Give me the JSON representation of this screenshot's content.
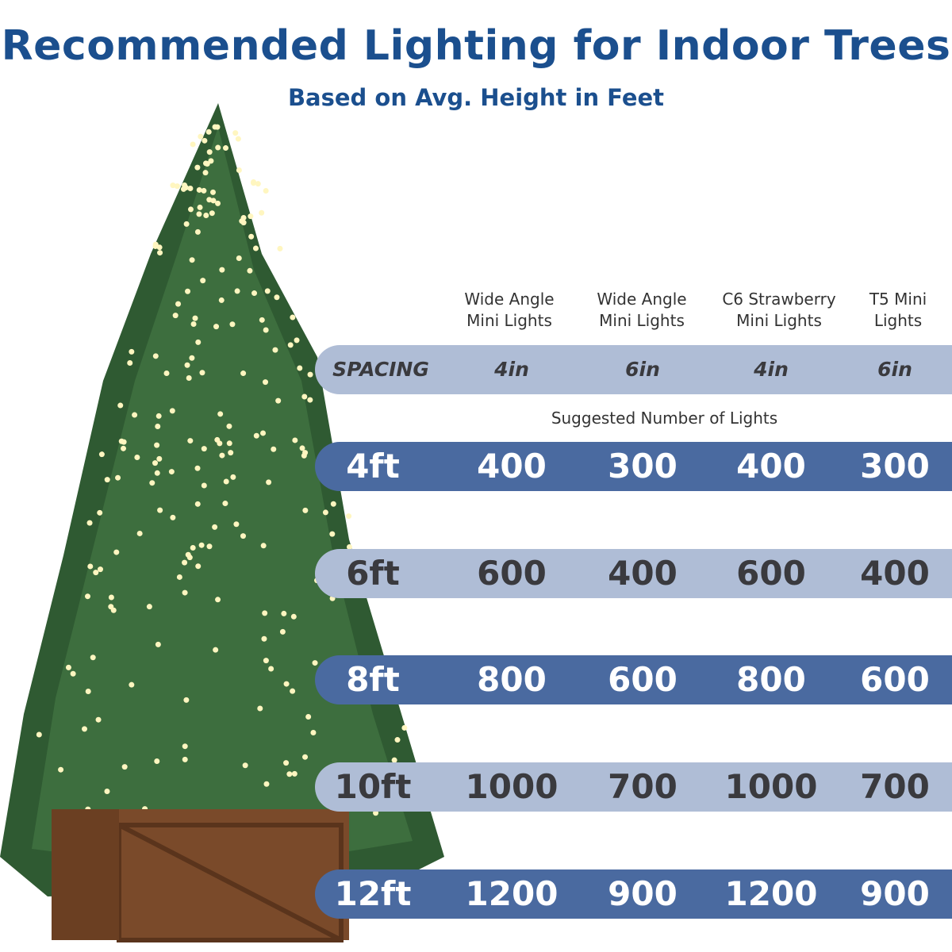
{
  "title": "Recommended Lighting for Indoor Trees",
  "subtitle": "Based on Avg. Height in Feet",
  "colors": {
    "title": "#1b4f8e",
    "bar_light": "#afbdd6",
    "bar_dark": "#4a6aa0",
    "bulb_base": "#1f5e5e"
  },
  "products": [
    {
      "line1": "Wide Angle",
      "line2": "Mini Lights",
      "icon": "wide-angle-bulb"
    },
    {
      "line1": "Wide Angle",
      "line2": "Mini Lights",
      "icon": "wide-angle-bulb"
    },
    {
      "line1": "C6 Strawberry",
      "line2": "Mini Lights",
      "icon": "c6-strawberry-bulb"
    },
    {
      "line1": "T5 Mini",
      "line2": "Lights",
      "icon": "t5-mini-bulb"
    }
  ],
  "spacing": {
    "label": "SPACING",
    "values": [
      "4in",
      "6in",
      "4in",
      "6in"
    ]
  },
  "suggested_label": "Suggested Number of Lights",
  "rows": [
    {
      "height": "4ft",
      "values": [
        "400",
        "300",
        "400",
        "300"
      ]
    },
    {
      "height": "6ft",
      "values": [
        "600",
        "400",
        "600",
        "400"
      ]
    },
    {
      "height": "8ft",
      "values": [
        "800",
        "600",
        "800",
        "600"
      ]
    },
    {
      "height": "10ft",
      "values": [
        "1000",
        "700",
        "1000",
        "700"
      ]
    },
    {
      "height": "12ft",
      "values": [
        "1200",
        "900",
        "1200",
        "900"
      ]
    }
  ]
}
